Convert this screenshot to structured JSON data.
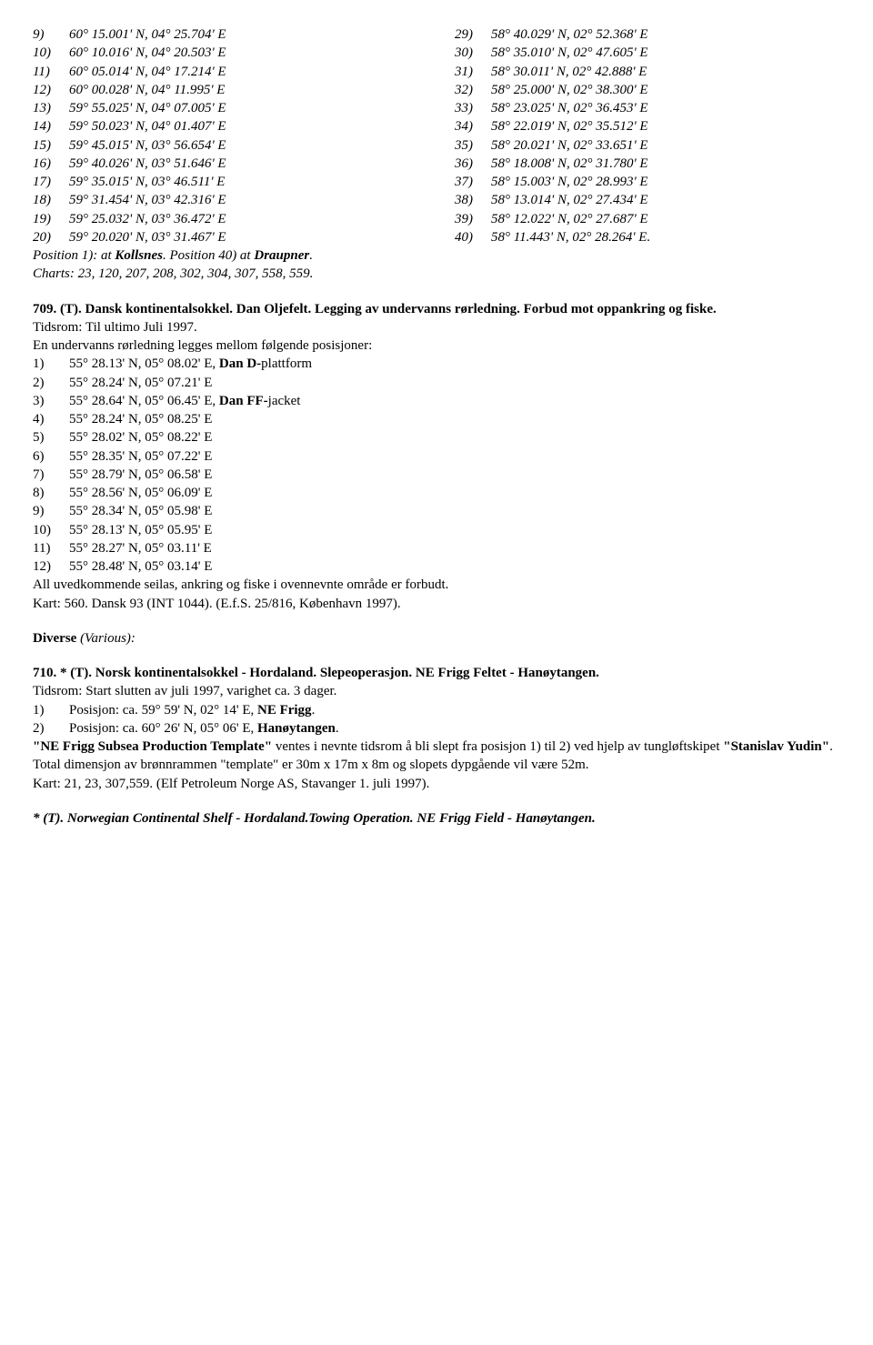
{
  "leftCoords": [
    {
      "n": "9)",
      "v": "60° 15.001' N, 04° 25.704' E"
    },
    {
      "n": "10)",
      "v": "60° 10.016' N, 04° 20.503' E"
    },
    {
      "n": "11)",
      "v": "60° 05.014' N, 04° 17.214' E"
    },
    {
      "n": "12)",
      "v": "60° 00.028' N, 04° 11.995' E"
    },
    {
      "n": "13)",
      "v": "59° 55.025' N, 04° 07.005' E"
    },
    {
      "n": "14)",
      "v": "59° 50.023' N, 04° 01.407' E"
    },
    {
      "n": "15)",
      "v": "59° 45.015' N, 03° 56.654' E"
    },
    {
      "n": "16)",
      "v": "59° 40.026' N, 03° 51.646' E"
    },
    {
      "n": "17)",
      "v": "59° 35.015' N, 03° 46.511' E"
    },
    {
      "n": "18)",
      "v": "59° 31.454' N, 03° 42.316' E"
    },
    {
      "n": "19)",
      "v": "59° 25.032' N, 03° 36.472' E"
    },
    {
      "n": "20)",
      "v": "59° 20.020' N, 03° 31.467' E"
    }
  ],
  "rightCoords": [
    {
      "n": "29)",
      "v": "58° 40.029' N, 02° 52.368' E"
    },
    {
      "n": "30)",
      "v": "58° 35.010' N, 02° 47.605' E"
    },
    {
      "n": "31)",
      "v": "58° 30.011' N, 02° 42.888' E"
    },
    {
      "n": "32)",
      "v": "58° 25.000' N, 02° 38.300' E"
    },
    {
      "n": "33)",
      "v": "58° 23.025' N, 02° 36.453' E"
    },
    {
      "n": "34)",
      "v": "58° 22.019' N, 02° 35.512' E"
    },
    {
      "n": "35)",
      "v": "58° 20.021' N, 02° 33.651' E"
    },
    {
      "n": "36)",
      "v": "58° 18.008' N, 02° 31.780' E"
    },
    {
      "n": "37)",
      "v": "58° 15.003' N, 02° 28.993' E"
    },
    {
      "n": "38)",
      "v": "58° 13.014' N, 02° 27.434' E"
    },
    {
      "n": "39)",
      "v": "58° 12.022' N, 02° 27.687' E"
    },
    {
      "n": "40)",
      "v": "58° 11.443' N, 02° 28.264' E."
    }
  ],
  "positionLine": {
    "t1": "Position 1): at ",
    "b1": "Kollsnes",
    "t2": ". Position 40) at ",
    "b2": "Draupner",
    "t3": "."
  },
  "chartsLine": "Charts: 23, 120, 207, 208, 302, 304, 307, 558, 559.",
  "sec709": {
    "head": "709. (T). Dansk kontinentalsokkel. Dan Oljefelt. Legging av undervanns rørledning. Forbud mot oppankring og fiske.",
    "l1": "Tidsrom: Til ultimo Juli 1997.",
    "l2": "En undervanns rørledning legges mellom følgende posisjoner:",
    "rows": [
      {
        "n": "1)",
        "pre": "55° 28.13' N, 05° 08.02' E, ",
        "bold": "Dan D-",
        "post": "plattform"
      },
      {
        "n": "2)",
        "pre": "55° 28.24' N, 05° 07.21' E",
        "bold": "",
        "post": ""
      },
      {
        "n": "3)",
        "pre": "55° 28.64' N, 05° 06.45' E, ",
        "bold": "Dan FF-",
        "post": "jacket"
      },
      {
        "n": "4)",
        "pre": "55° 28.24' N, 05° 08.25' E",
        "bold": "",
        "post": ""
      },
      {
        "n": "5)",
        "pre": "55° 28.02' N, 05° 08.22' E",
        "bold": "",
        "post": ""
      },
      {
        "n": "6)",
        "pre": "55° 28.35' N, 05° 07.22' E",
        "bold": "",
        "post": ""
      },
      {
        "n": "7)",
        "pre": "55° 28.79' N, 05° 06.58' E",
        "bold": "",
        "post": ""
      },
      {
        "n": "8)",
        "pre": "55° 28.56' N, 05° 06.09' E",
        "bold": "",
        "post": ""
      },
      {
        "n": "9)",
        "pre": "55° 28.34' N, 05° 05.98' E",
        "bold": "",
        "post": ""
      },
      {
        "n": "10)",
        "pre": "55° 28.13' N, 05° 05.95' E",
        "bold": "",
        "post": ""
      },
      {
        "n": "11)",
        "pre": "55° 28.27' N, 05° 03.11' E",
        "bold": "",
        "post": ""
      },
      {
        "n": "12)",
        "pre": "55° 28.48' N, 05° 03.14' E",
        "bold": "",
        "post": ""
      }
    ],
    "l3": "All uvedkommende seilas, ankring og fiske i ovennevnte område er forbudt.",
    "l4": "Kart: 560. Dansk 93 (INT 1044). (E.f.S. 25/816, København 1997)."
  },
  "diverse": {
    "b": "Diverse ",
    "i": "(Various):"
  },
  "sec710": {
    "head": "710. * (T). Norsk kontinentalsokkel - Hordaland. Slepeoperasjon. NE Frigg Feltet - Hanøytangen.",
    "l1": "Tidsrom: Start slutten av juli 1997, varighet ca. 3 dager.",
    "rows": [
      {
        "n": "1)",
        "pre": "Posisjon: ca. 59° 59' N, 02° 14' E, ",
        "bold": "NE Frigg",
        "post": "."
      },
      {
        "n": "2)",
        "pre": "Posisjon: ca. 60° 26' N, 05° 06' E, ",
        "bold": "Hanøytangen",
        "post": "."
      }
    ],
    "p1a": "\"NE Frigg Subsea Production Template\"",
    "p1b": " ventes i nevnte tidsrom å bli slept fra posisjon 1) til 2) ved hjelp av tungløftskipet ",
    "p1c": "\"Stanislav Yudin\"",
    "p1d": ".",
    "p2": "Total dimensjon av brønnrammen \"template\" er 30m x 17m x 8m og slopets dypgående vil være 52m.",
    "p3": "Kart: 21, 23, 307,559. (Elf Petroleum Norge AS, Stavanger 1. juli 1997)."
  },
  "footer": "* (T). Norwegian Continental Shelf - Hordaland.Towing Operation. NE Frigg Field - Hanøytangen."
}
